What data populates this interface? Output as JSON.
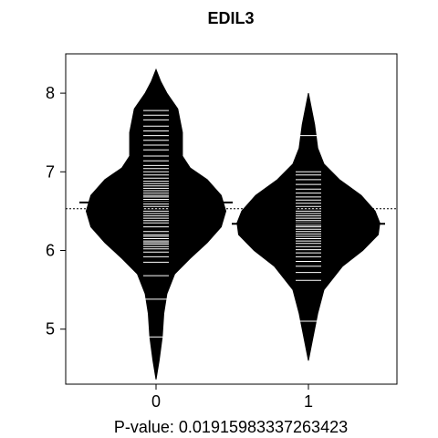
{
  "chart_data": {
    "type": "beanplot",
    "title": "EDIL3",
    "xlabel": "P-value: 0.01915983337263423",
    "ylabel": "",
    "ylim": [
      4.3,
      8.5
    ],
    "yticks": [
      "5",
      "6",
      "7",
      "8"
    ],
    "categories": [
      "0",
      "1"
    ],
    "overall_mean": 6.53,
    "grid": false,
    "legend": "none",
    "series": [
      {
        "category": "0",
        "median_line": 6.61,
        "density_profile": [
          [
            4.36,
            0.0
          ],
          [
            4.6,
            0.02
          ],
          [
            4.9,
            0.04
          ],
          [
            5.2,
            0.05
          ],
          [
            5.45,
            0.07
          ],
          [
            5.7,
            0.12
          ],
          [
            5.9,
            0.22
          ],
          [
            6.1,
            0.33
          ],
          [
            6.3,
            0.42
          ],
          [
            6.5,
            0.45
          ],
          [
            6.7,
            0.42
          ],
          [
            6.9,
            0.33
          ],
          [
            7.05,
            0.22
          ],
          [
            7.2,
            0.17
          ],
          [
            7.5,
            0.17
          ],
          [
            7.8,
            0.14
          ],
          [
            8.0,
            0.07
          ],
          [
            8.15,
            0.03
          ],
          [
            8.3,
            0.0
          ]
        ],
        "observations": [
          4.9,
          5.38,
          5.68,
          5.85,
          5.92,
          5.98,
          6.02,
          6.05,
          6.08,
          6.1,
          6.12,
          6.15,
          6.18,
          6.2,
          6.24,
          6.3,
          6.35,
          6.38,
          6.41,
          6.44,
          6.47,
          6.5,
          6.53,
          6.56,
          6.59,
          6.62,
          6.65,
          6.68,
          6.7,
          6.73,
          6.76,
          6.79,
          6.82,
          6.85,
          6.88,
          6.92,
          6.96,
          7.0,
          7.04,
          7.08,
          7.14,
          7.2,
          7.28,
          7.34,
          7.4,
          7.46,
          7.52,
          7.58,
          7.66,
          7.72,
          7.78
        ]
      },
      {
        "category": "1",
        "median_line": 6.34,
        "density_profile": [
          [
            4.6,
            0.0
          ],
          [
            4.8,
            0.02
          ],
          [
            5.0,
            0.04
          ],
          [
            5.2,
            0.06
          ],
          [
            5.5,
            0.1
          ],
          [
            5.8,
            0.22
          ],
          [
            6.0,
            0.35
          ],
          [
            6.2,
            0.45
          ],
          [
            6.35,
            0.46
          ],
          [
            6.5,
            0.43
          ],
          [
            6.7,
            0.34
          ],
          [
            6.9,
            0.2
          ],
          [
            7.1,
            0.1
          ],
          [
            7.3,
            0.06
          ],
          [
            7.6,
            0.04
          ],
          [
            7.8,
            0.02
          ],
          [
            8.0,
            0.0
          ]
        ],
        "observations": [
          5.1,
          5.62,
          5.72,
          5.8,
          5.86,
          5.92,
          5.97,
          6.01,
          6.05,
          6.09,
          6.12,
          6.15,
          6.18,
          6.21,
          6.24,
          6.27,
          6.3,
          6.32,
          6.35,
          6.38,
          6.41,
          6.44,
          6.47,
          6.5,
          6.53,
          6.56,
          6.6,
          6.64,
          6.68,
          6.73,
          6.78,
          6.84,
          6.9,
          6.96,
          7.0,
          7.46
        ]
      }
    ]
  }
}
